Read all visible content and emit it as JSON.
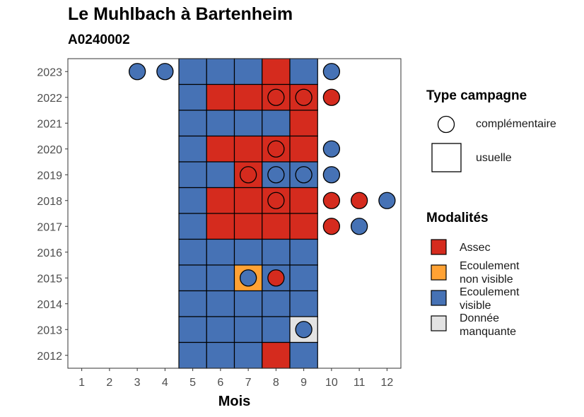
{
  "title": "Le Muhlbach à Bartenheim",
  "subtitle": "A0240002",
  "chart_data": {
    "type": "heatmap",
    "xlabel": "Mois",
    "ylabel": "",
    "x_ticks": [
      1,
      2,
      3,
      4,
      5,
      6,
      7,
      8,
      9,
      10,
      11,
      12
    ],
    "y_ticks": [
      2012,
      2013,
      2014,
      2015,
      2016,
      2017,
      2018,
      2019,
      2020,
      2021,
      2022,
      2023
    ],
    "xlim": [
      0.5,
      12.5
    ],
    "ylim": [
      2011.5,
      2023.5
    ],
    "colors": {
      "Assec": "#d52b1e",
      "Ecoulement non visible": "#ffa234",
      "Ecoulement visible": "#4672b5",
      "Donnée manquante": "#e3e3e3"
    },
    "usuelle": [
      {
        "year": 2023,
        "months": [
          "Ecoulement visible",
          "Ecoulement visible",
          "Ecoulement visible",
          "Assec",
          "Ecoulement visible"
        ]
      },
      {
        "year": 2022,
        "months": [
          "Ecoulement visible",
          "Assec",
          "Assec",
          "Assec",
          "Assec"
        ]
      },
      {
        "year": 2021,
        "months": [
          "Ecoulement visible",
          "Ecoulement visible",
          "Ecoulement visible",
          "Ecoulement visible",
          "Assec"
        ]
      },
      {
        "year": 2020,
        "months": [
          "Ecoulement visible",
          "Assec",
          "Assec",
          "Assec",
          "Assec"
        ]
      },
      {
        "year": 2019,
        "months": [
          "Ecoulement visible",
          "Ecoulement visible",
          "Assec",
          "Ecoulement visible",
          "Ecoulement visible"
        ]
      },
      {
        "year": 2018,
        "months": [
          "Ecoulement visible",
          "Assec",
          "Assec",
          "Assec",
          "Assec"
        ]
      },
      {
        "year": 2017,
        "months": [
          "Ecoulement visible",
          "Assec",
          "Assec",
          "Assec",
          "Assec"
        ]
      },
      {
        "year": 2016,
        "months": [
          "Ecoulement visible",
          "Ecoulement visible",
          "Ecoulement visible",
          "Ecoulement visible",
          "Ecoulement visible"
        ]
      },
      {
        "year": 2015,
        "months": [
          "Ecoulement visible",
          "Ecoulement visible",
          "Ecoulement non visible",
          "Ecoulement visible",
          "Ecoulement visible"
        ]
      },
      {
        "year": 2014,
        "months": [
          "Ecoulement visible",
          "Ecoulement visible",
          "Ecoulement visible",
          "Ecoulement visible",
          "Ecoulement visible"
        ]
      },
      {
        "year": 2013,
        "months": [
          "Ecoulement visible",
          "Ecoulement visible",
          "Ecoulement visible",
          "Ecoulement visible",
          "Donnée manquante"
        ]
      },
      {
        "year": 2012,
        "months": [
          "Ecoulement visible",
          "Ecoulement visible",
          "Ecoulement visible",
          "Assec",
          "Ecoulement visible"
        ]
      }
    ],
    "usuelle_first_month": 5,
    "complementaire": [
      {
        "year": 2023,
        "month": 3,
        "modalite": "Ecoulement visible"
      },
      {
        "year": 2023,
        "month": 4,
        "modalite": "Ecoulement visible"
      },
      {
        "year": 2023,
        "month": 10,
        "modalite": "Ecoulement visible"
      },
      {
        "year": 2022,
        "month": 8,
        "modalite": "Assec"
      },
      {
        "year": 2022,
        "month": 9,
        "modalite": "Assec"
      },
      {
        "year": 2022,
        "month": 10,
        "modalite": "Assec"
      },
      {
        "year": 2020,
        "month": 8,
        "modalite": "Assec"
      },
      {
        "year": 2020,
        "month": 10,
        "modalite": "Ecoulement visible"
      },
      {
        "year": 2019,
        "month": 7,
        "modalite": "Assec"
      },
      {
        "year": 2019,
        "month": 8,
        "modalite": "Ecoulement visible"
      },
      {
        "year": 2019,
        "month": 9,
        "modalite": "Ecoulement visible"
      },
      {
        "year": 2019,
        "month": 10,
        "modalite": "Ecoulement visible"
      },
      {
        "year": 2018,
        "month": 8,
        "modalite": "Assec"
      },
      {
        "year": 2018,
        "month": 10,
        "modalite": "Assec"
      },
      {
        "year": 2018,
        "month": 11,
        "modalite": "Assec"
      },
      {
        "year": 2018,
        "month": 12,
        "modalite": "Ecoulement visible"
      },
      {
        "year": 2017,
        "month": 10,
        "modalite": "Assec"
      },
      {
        "year": 2017,
        "month": 11,
        "modalite": "Ecoulement visible"
      },
      {
        "year": 2015,
        "month": 7,
        "modalite": "Ecoulement visible"
      },
      {
        "year": 2015,
        "month": 8,
        "modalite": "Assec"
      },
      {
        "year": 2013,
        "month": 9,
        "modalite": "Ecoulement visible"
      }
    ],
    "legend": {
      "type_title": "Type campagne",
      "type_items": [
        "complémentaire",
        "usuelle"
      ],
      "modalites_title": "Modalités",
      "modalites_items": [
        {
          "key": "Assec",
          "lines": [
            "Assec"
          ]
        },
        {
          "key": "Ecoulement non visible",
          "lines": [
            "Ecoulement",
            "non visible"
          ]
        },
        {
          "key": "Ecoulement visible",
          "lines": [
            "Ecoulement",
            "visible"
          ]
        },
        {
          "key": "Donnée manquante",
          "lines": [
            "Donnée",
            "manquante"
          ]
        }
      ]
    }
  }
}
